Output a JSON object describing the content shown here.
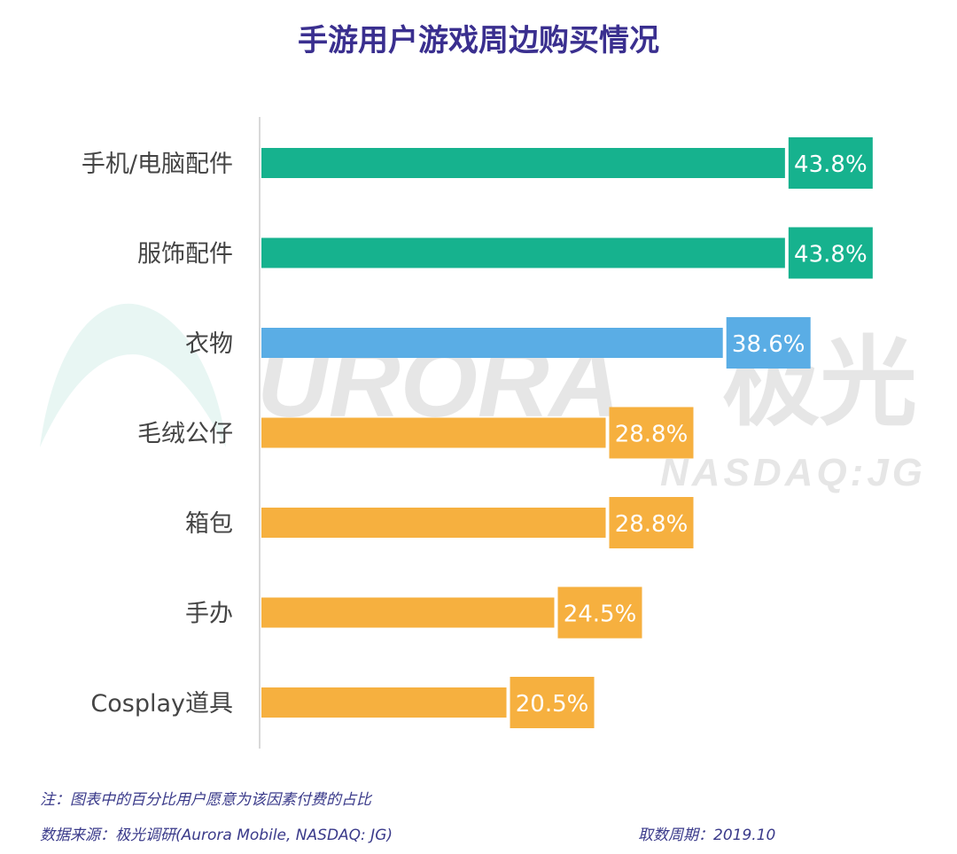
{
  "title": "手游用户游戏周边购买情况",
  "colors": {
    "green": "#16b28e",
    "blue": "#5aade5",
    "orange": "#f6b03f",
    "title": "#3a2f8f"
  },
  "watermark": {
    "logo_text": "URORA",
    "cn_text": "极光",
    "ticker": "NASDAQ:JG"
  },
  "chart_data": {
    "type": "bar",
    "orientation": "horizontal",
    "categories": [
      "手机/电脑配件",
      "服饰配件",
      "衣物",
      "毛绒公仔",
      "箱包",
      "手办",
      "Cosplay道具"
    ],
    "values": [
      43.8,
      43.8,
      38.6,
      28.8,
      28.8,
      24.5,
      20.5
    ],
    "value_labels": [
      "43.8%",
      "43.8%",
      "38.6%",
      "28.8%",
      "28.8%",
      "24.5%",
      "20.5%"
    ],
    "bar_colors": [
      "green",
      "green",
      "blue",
      "orange",
      "orange",
      "orange",
      "orange"
    ],
    "xlim": [
      0,
      45
    ],
    "grid": false,
    "title": "手游用户游戏周边购买情况"
  },
  "footer": {
    "note": "注：图表中的百分比用户愿意为该因素付费的占比",
    "source": "数据来源：极光调研(Aurora Mobile, NASDAQ: JG)",
    "period": "取数周期：2019.10"
  }
}
